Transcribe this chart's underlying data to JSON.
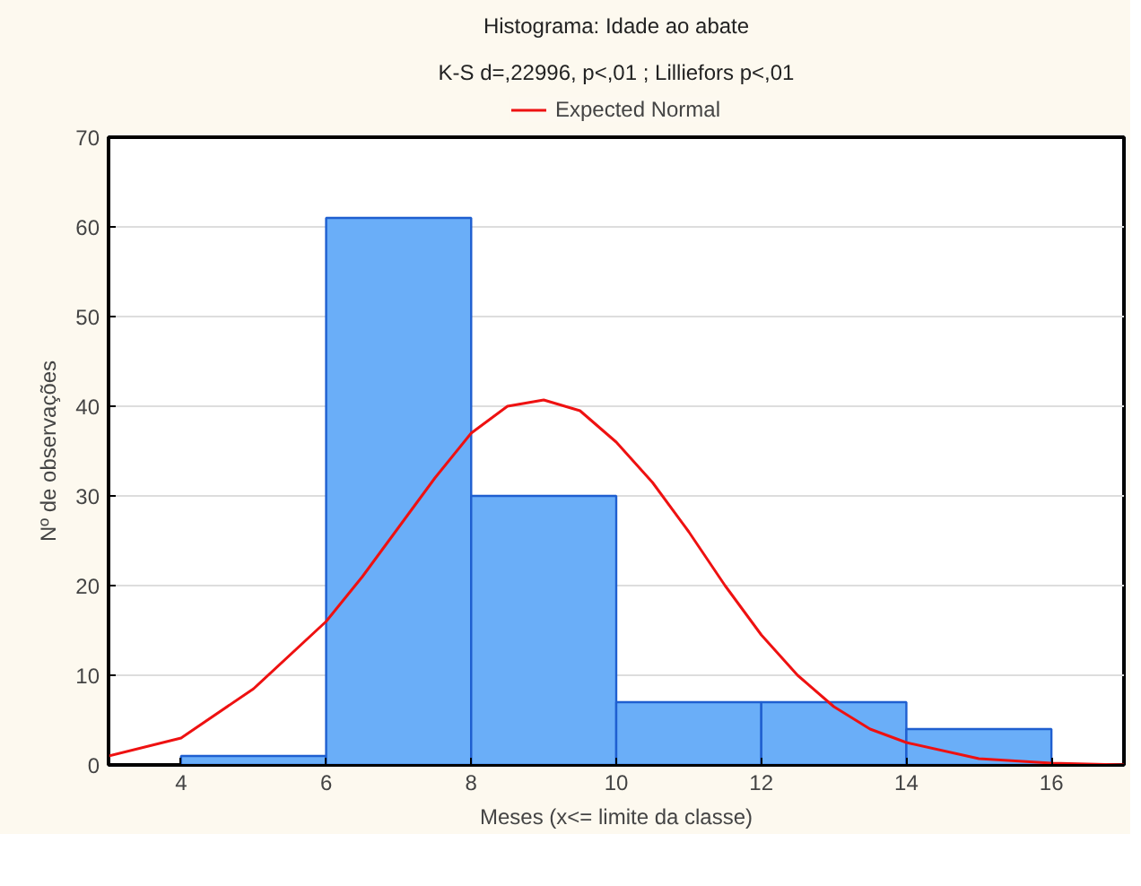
{
  "chart_data": {
    "type": "histogram",
    "title": "Histograma: Idade ao abate",
    "subtitle": "K-S d=,22996, p<,01 ; Lilliefors p<,01",
    "xlabel": "Meses (x<= limite da classe)",
    "ylabel": "Nº de observações",
    "bins": [
      4,
      6,
      8,
      10,
      12,
      14,
      16
    ],
    "values": [
      1,
      61,
      30,
      7,
      7,
      4
    ],
    "color": "#6aaef8",
    "series": [
      {
        "type": "line",
        "name": "Expected Normal",
        "color": "#ee1111",
        "x": [
          3,
          4,
          5,
          6,
          6.5,
          7,
          7.5,
          8,
          8.5,
          9,
          9.5,
          10,
          10.5,
          11,
          11.5,
          12,
          12.5,
          13,
          13.5,
          14,
          15,
          16,
          17
        ],
        "values": [
          1,
          3,
          8.5,
          16,
          21,
          26.5,
          32,
          37,
          40,
          40.7,
          39.5,
          36,
          31.5,
          26,
          20,
          14.5,
          10,
          6.5,
          4,
          2.5,
          0.7,
          0.2,
          0
        ]
      }
    ],
    "xlim": [
      3,
      17
    ],
    "ylim": [
      0,
      70
    ],
    "xticks": [
      4,
      6,
      8,
      10,
      12,
      14,
      16
    ],
    "yticks": [
      0,
      10,
      20,
      30,
      40,
      50,
      60,
      70
    ],
    "grid": "y",
    "legend": "top",
    "marker": "none",
    "line_style": "solid"
  }
}
